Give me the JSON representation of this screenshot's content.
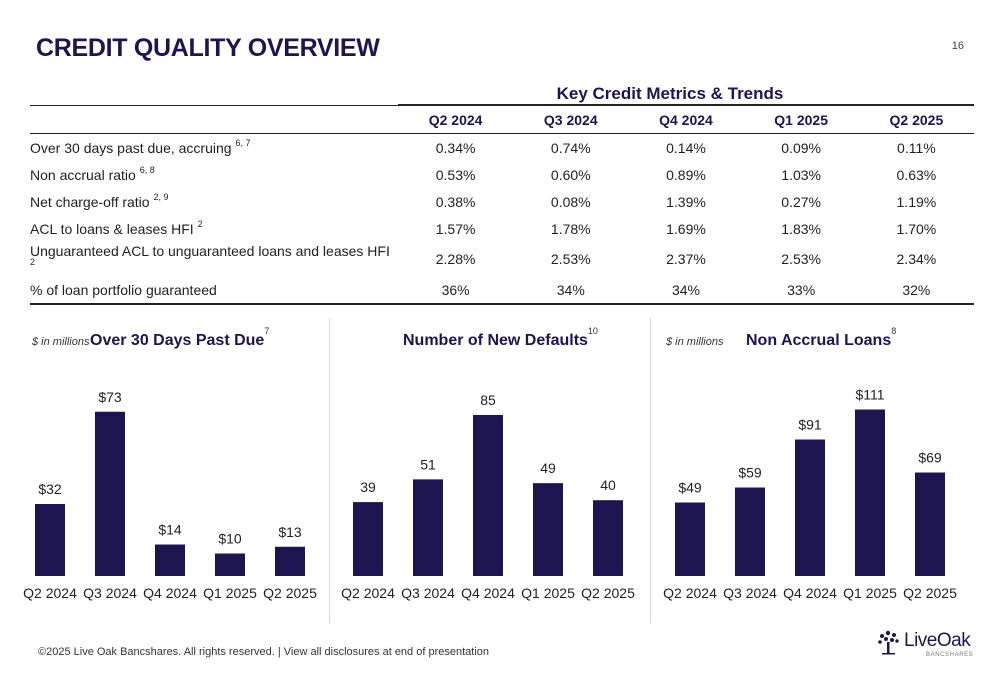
{
  "title": "CREDIT QUALITY OVERVIEW",
  "page_number": "16",
  "table": {
    "caption": "Key Credit Metrics & Trends",
    "columns": [
      "Q2 2024",
      "Q3 2024",
      "Q4 2024",
      "Q1 2025",
      "Q2 2025"
    ],
    "rows": [
      {
        "label": "Over 30 days past due, accruing",
        "note": "6, 7",
        "values": [
          "0.34%",
          "0.74%",
          "0.14%",
          "0.09%",
          "0.11%"
        ]
      },
      {
        "label": "Non accrual ratio",
        "note": "6, 8",
        "values": [
          "0.53%",
          "0.60%",
          "0.89%",
          "1.03%",
          "0.63%"
        ]
      },
      {
        "label": "Net charge-off ratio",
        "note": "2, 9",
        "values": [
          "0.38%",
          "0.08%",
          "1.39%",
          "0.27%",
          "1.19%"
        ]
      },
      {
        "label": "ACL to loans & leases HFI",
        "note": "2",
        "values": [
          "1.57%",
          "1.78%",
          "1.69%",
          "1.83%",
          "1.70%"
        ]
      },
      {
        "label": "Unguaranteed ACL to unguaranteed loans and leases HFI",
        "note": "2",
        "values": [
          "2.28%",
          "2.53%",
          "2.37%",
          "2.53%",
          "2.34%"
        ]
      },
      {
        "label": "% of loan portfolio guaranteed",
        "note": "",
        "values": [
          "36%",
          "34%",
          "34%",
          "33%",
          "32%"
        ]
      }
    ]
  },
  "chart_data": [
    {
      "type": "bar",
      "title": "Over 30 Days Past Due",
      "title_note": "7",
      "unit_note": "$ in millions",
      "categories": [
        "Q2 2024",
        "Q3 2024",
        "Q4 2024",
        "Q1 2025",
        "Q2 2025"
      ],
      "values": [
        32,
        73,
        14,
        10,
        13
      ],
      "labels": [
        "$32",
        "$73",
        "$14",
        "$10",
        "$13"
      ],
      "ylim": [
        0,
        80
      ],
      "color": "#1c1550"
    },
    {
      "type": "bar",
      "title": "Number of New Defaults",
      "title_note": "10",
      "unit_note": "",
      "categories": [
        "Q2 2024",
        "Q3 2024",
        "Q4 2024",
        "Q1 2025",
        "Q2 2025"
      ],
      "values": [
        39,
        51,
        85,
        49,
        40
      ],
      "labels": [
        "39",
        "51",
        "85",
        "49",
        "40"
      ],
      "ylim": [
        0,
        95
      ],
      "color": "#1c1550"
    },
    {
      "type": "bar",
      "title": "Non Accrual Loans",
      "title_note": "8",
      "unit_note": "$ in millions",
      "categories": [
        "Q2 2024",
        "Q3 2024",
        "Q4 2024",
        "Q1 2025",
        "Q2 2025"
      ],
      "values": [
        49,
        59,
        91,
        111,
        69
      ],
      "labels": [
        "$49",
        "$59",
        "$91",
        "$111",
        "$69"
      ],
      "ylim": [
        0,
        120
      ],
      "color": "#1c1550"
    }
  ],
  "footer": "©2025 Live Oak Bancshares. All rights reserved.  |  View all disclosures at end of presentation",
  "logo": {
    "name": "LiveOak",
    "sub": "BANCSHARES",
    "icon": "oak-tree-icon"
  }
}
